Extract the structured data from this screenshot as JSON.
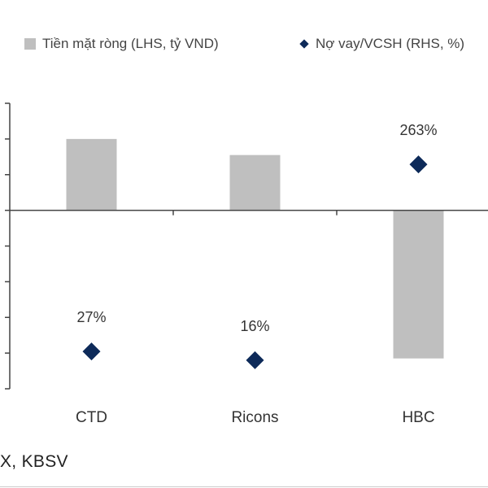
{
  "legend": {
    "bar_label": "Tiền mặt ròng (LHS, tỷ VND)",
    "diamond_label": "Nợ vay/VCSH (RHS, %)"
  },
  "source": "X, KBSV",
  "colors": {
    "bar": "#bfbfbf",
    "diamond": "#0d2a59",
    "axis": "#444444",
    "text": "#333333"
  },
  "chart_data": {
    "type": "bar",
    "categories": [
      "CTD",
      "Ricons",
      "HBC"
    ],
    "series": [
      {
        "name": "Tiền mặt ròng (LHS, tỷ VND)",
        "type": "bar",
        "axis": "left",
        "values": [
          2000,
          1550,
          -4150
        ]
      },
      {
        "name": "Nợ vay/VCSH (RHS, %)",
        "type": "scatter",
        "marker": "diamond",
        "axis": "right",
        "values": [
          27,
          16,
          263
        ],
        "labels": [
          "27%",
          "16%",
          "263%"
        ]
      }
    ],
    "left_axis": {
      "ylim": [
        -5000,
        3000
      ],
      "tick_step": 1000,
      "tick_labels_visible": false
    },
    "right_axis": {
      "ylim": [
        -20,
        340
      ],
      "tick_labels_visible": false
    },
    "legend_position": "top",
    "grid": false
  }
}
